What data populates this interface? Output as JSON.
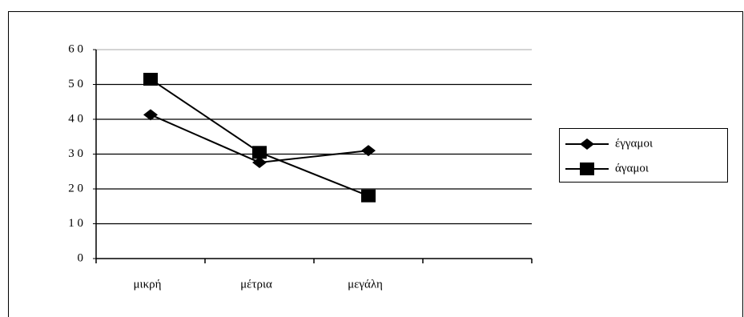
{
  "chart_data": {
    "type": "line",
    "categories": [
      "μικρή",
      "μέτρια",
      "μεγάλη",
      null
    ],
    "series": [
      {
        "name": "έγγαμοι",
        "color": "#000000",
        "marker": "diamond",
        "values": [
          41.3,
          27.6,
          31,
          null
        ]
      },
      {
        "name": "άγαμοι",
        "color": "#000000",
        "marker": "square",
        "values": [
          51.5,
          30.5,
          18,
          null
        ]
      }
    ],
    "ylim": [
      0,
      60
    ],
    "yticks": [
      0,
      {
        "value": 10,
        "label": "1 0"
      },
      {
        "value": 20,
        "label": "2 0"
      },
      {
        "value": 30,
        "label": "3 0"
      },
      {
        "value": 40,
        "label": "4 0"
      },
      {
        "value": 50,
        "label": "5 0"
      },
      {
        "value": 60,
        "label": "6 0"
      }
    ],
    "grid": true,
    "legend": "right"
  }
}
